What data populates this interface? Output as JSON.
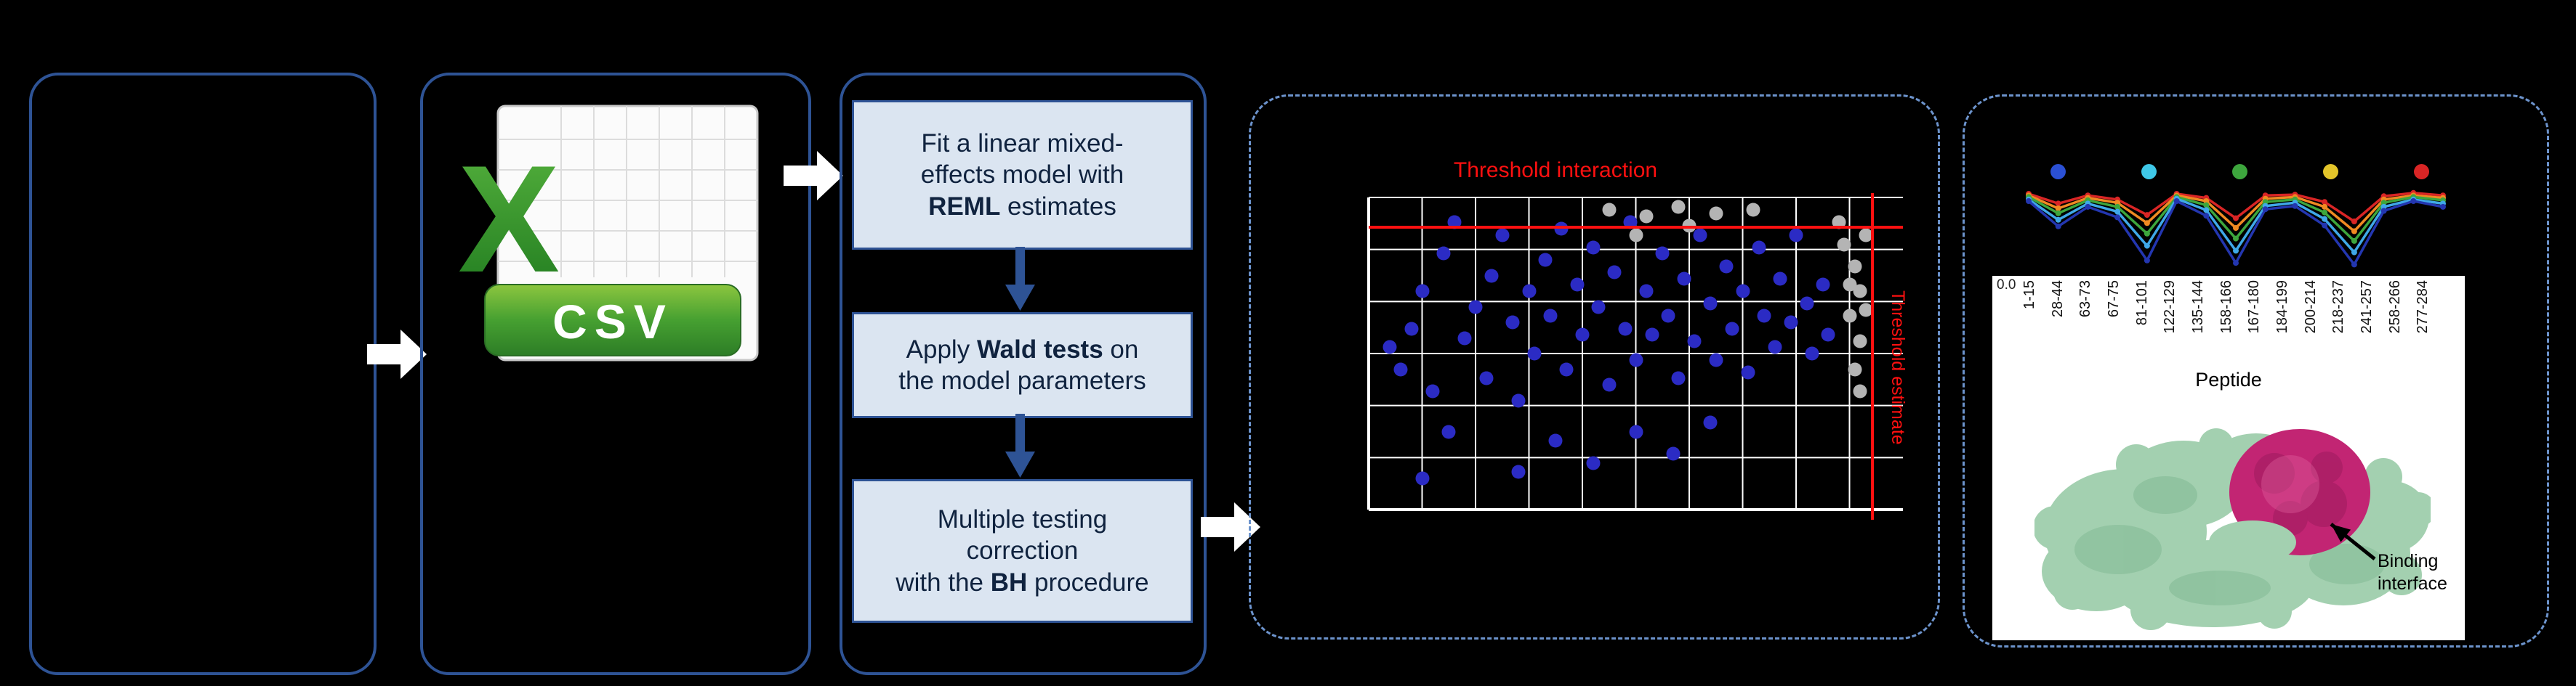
{
  "colors": {
    "panel_border": "#2e5395",
    "dashed_border": "#6c93cc",
    "flow_box_fill": "#dbe5f1",
    "flow_box_border": "#2e5395",
    "flow_arrow": "#2e5395",
    "threshold_red": "#ff1010",
    "scatter_blue": "#2b2bc4",
    "scatter_gray": "#b4b4b4",
    "protein_green": "#a3d0b0",
    "protein_green_dark": "#7fb791",
    "protein_magenta": "#c22573",
    "excel_green": "#3f9b33"
  },
  "csv_panel": {
    "x_letter": "X",
    "format_label": "CSV"
  },
  "flowchart": {
    "boxes": [
      {
        "lines": [
          [
            {
              "t": "Fit a linear mixed-"
            }
          ],
          [
            {
              "t": "effects model with"
            }
          ],
          [
            {
              "t": "REML",
              "b": true
            },
            {
              "t": " estimates"
            }
          ]
        ]
      },
      {
        "lines": [
          [
            {
              "t": "Apply "
            },
            {
              "t": "Wald tests",
              "b": true
            },
            {
              "t": " on"
            }
          ],
          [
            {
              "t": "the model parameters"
            }
          ]
        ]
      },
      {
        "lines": [
          [
            {
              "t": "Multiple testing"
            }
          ],
          [
            {
              "t": "correction"
            }
          ],
          [
            {
              "t": "with the "
            },
            {
              "t": "BH",
              "b": true
            },
            {
              "t": " procedure"
            }
          ]
        ]
      }
    ]
  },
  "scatter": {
    "type": "scatter",
    "title": "Threshold interaction",
    "side_label": "Threshold estimate",
    "h_threshold_pct": 9,
    "v_threshold_pct": 94,
    "blue_points": [
      [
        4,
        48
      ],
      [
        6,
        55
      ],
      [
        8,
        42
      ],
      [
        10,
        30
      ],
      [
        12,
        62
      ],
      [
        14,
        18
      ],
      [
        16,
        8
      ],
      [
        18,
        45
      ],
      [
        20,
        35
      ],
      [
        22,
        58
      ],
      [
        23,
        25
      ],
      [
        25,
        12
      ],
      [
        27,
        40
      ],
      [
        28,
        65
      ],
      [
        30,
        30
      ],
      [
        31,
        50
      ],
      [
        33,
        20
      ],
      [
        34,
        38
      ],
      [
        36,
        10
      ],
      [
        37,
        55
      ],
      [
        39,
        28
      ],
      [
        40,
        44
      ],
      [
        42,
        16
      ],
      [
        43,
        35
      ],
      [
        45,
        60
      ],
      [
        46,
        24
      ],
      [
        48,
        42
      ],
      [
        49,
        8
      ],
      [
        50,
        52
      ],
      [
        52,
        30
      ],
      [
        53,
        44
      ],
      [
        55,
        18
      ],
      [
        56,
        38
      ],
      [
        58,
        58
      ],
      [
        59,
        26
      ],
      [
        61,
        46
      ],
      [
        62,
        12
      ],
      [
        64,
        34
      ],
      [
        65,
        52
      ],
      [
        67,
        22
      ],
      [
        68,
        42
      ],
      [
        70,
        30
      ],
      [
        71,
        56
      ],
      [
        73,
        16
      ],
      [
        74,
        38
      ],
      [
        76,
        48
      ],
      [
        77,
        26
      ],
      [
        79,
        40
      ],
      [
        80,
        12
      ],
      [
        82,
        34
      ],
      [
        83,
        50
      ],
      [
        85,
        28
      ],
      [
        86,
        44
      ],
      [
        35,
        78
      ],
      [
        42,
        85
      ],
      [
        50,
        75
      ],
      [
        57,
        82
      ],
      [
        28,
        88
      ],
      [
        15,
        75
      ],
      [
        64,
        72
      ],
      [
        10,
        90
      ]
    ],
    "gray_points": [
      [
        89,
        15
      ],
      [
        91,
        22
      ],
      [
        92,
        30
      ],
      [
        90,
        38
      ],
      [
        92,
        46
      ],
      [
        93,
        12
      ],
      [
        91,
        55
      ],
      [
        92,
        62
      ],
      [
        93,
        36
      ],
      [
        90,
        28
      ],
      [
        88,
        8
      ],
      [
        45,
        4
      ],
      [
        52,
        6
      ],
      [
        58,
        3
      ],
      [
        65,
        5
      ],
      [
        72,
        4
      ],
      [
        50,
        12
      ],
      [
        60,
        9
      ]
    ]
  },
  "uptake_chart": {
    "type": "line",
    "y_origin_label": "0.0",
    "x_axis_title": "Peptide",
    "x_labels": [
      "1-15",
      "28-44",
      "63-73",
      "67-75",
      "81-101",
      "122-129",
      "135-144",
      "158-166",
      "167-180",
      "184-199",
      "200-214",
      "218-237",
      "241-257",
      "258-266",
      "277-284"
    ],
    "legend_dot_colors": [
      "#2b50d4",
      "#3fc8e8",
      "#3da63d",
      "#e3c52a",
      "#d92525"
    ],
    "series": [
      {
        "name": "series-1",
        "color": "#d92525",
        "values": [
          0.08,
          0.2,
          0.1,
          0.15,
          0.34,
          0.08,
          0.13,
          0.38,
          0.1,
          0.09,
          0.18,
          0.42,
          0.11,
          0.07,
          0.1
        ]
      },
      {
        "name": "series-2",
        "color": "#f08a22",
        "values": [
          0.1,
          0.26,
          0.13,
          0.19,
          0.44,
          0.1,
          0.17,
          0.5,
          0.14,
          0.12,
          0.24,
          0.54,
          0.15,
          0.1,
          0.13
        ]
      },
      {
        "name": "series-3",
        "color": "#3da63d",
        "values": [
          0.12,
          0.32,
          0.16,
          0.24,
          0.57,
          0.12,
          0.22,
          0.63,
          0.18,
          0.15,
          0.31,
          0.66,
          0.19,
          0.12,
          0.16
        ]
      },
      {
        "name": "series-4",
        "color": "#3fa8e8",
        "values": [
          0.15,
          0.4,
          0.2,
          0.3,
          0.72,
          0.14,
          0.28,
          0.78,
          0.23,
          0.19,
          0.39,
          0.8,
          0.24,
          0.15,
          0.2
        ]
      },
      {
        "name": "series-5",
        "color": "#2336b0",
        "values": [
          0.17,
          0.48,
          0.24,
          0.37,
          0.9,
          0.17,
          0.35,
          0.93,
          0.27,
          0.23,
          0.47,
          0.95,
          0.29,
          0.17,
          0.24
        ]
      }
    ]
  },
  "protein": {
    "annotation_line1": "Binding",
    "annotation_line2": "interface"
  }
}
